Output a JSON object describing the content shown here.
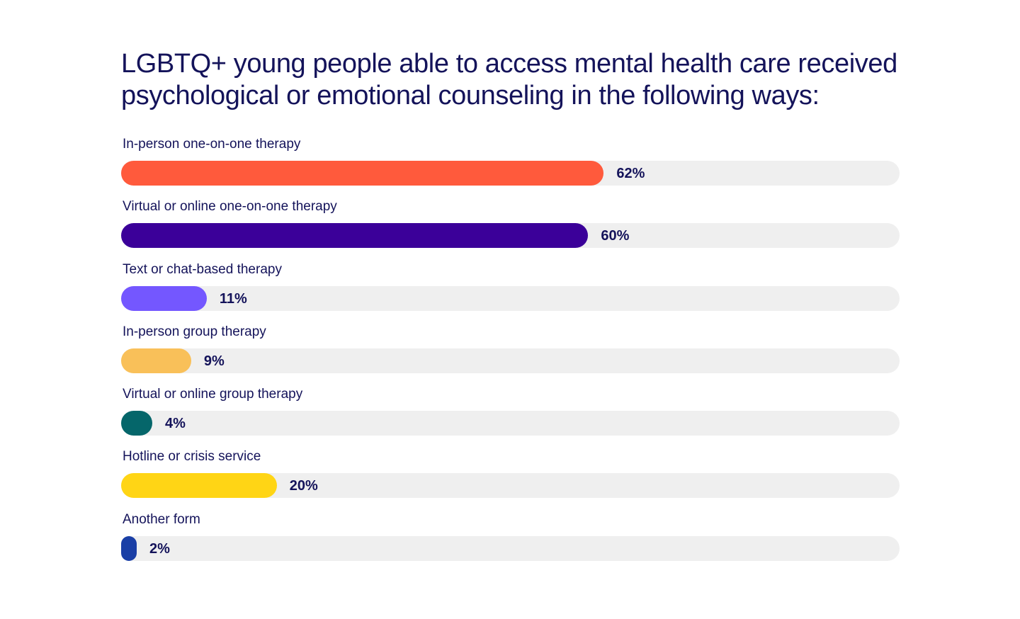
{
  "chart_data": {
    "type": "bar",
    "orientation": "horizontal",
    "title": "LGBTQ+ young people able to access mental health care received psychological or emotional counseling in the following ways:",
    "categories": [
      "In-person one-on-one therapy",
      "Virtual or online one-on-one therapy",
      "Text or chat-based therapy",
      "In-person group therapy",
      "Virtual or online group therapy",
      "Hotline or crisis service",
      "Another form"
    ],
    "values": [
      62,
      60,
      11,
      9,
      4,
      20,
      2
    ],
    "value_labels": [
      "62%",
      "60%",
      "11%",
      "9%",
      "4%",
      "20%",
      "2%"
    ],
    "colors": [
      "#ff5a3c",
      "#3b0099",
      "#7457ff",
      "#f9c059",
      "#05666a",
      "#ffd515",
      "#1a3fa6"
    ],
    "track_color": "#efefef",
    "text_color": "#14135a",
    "xlim": [
      0,
      100
    ],
    "grid": false,
    "legend": "none"
  }
}
